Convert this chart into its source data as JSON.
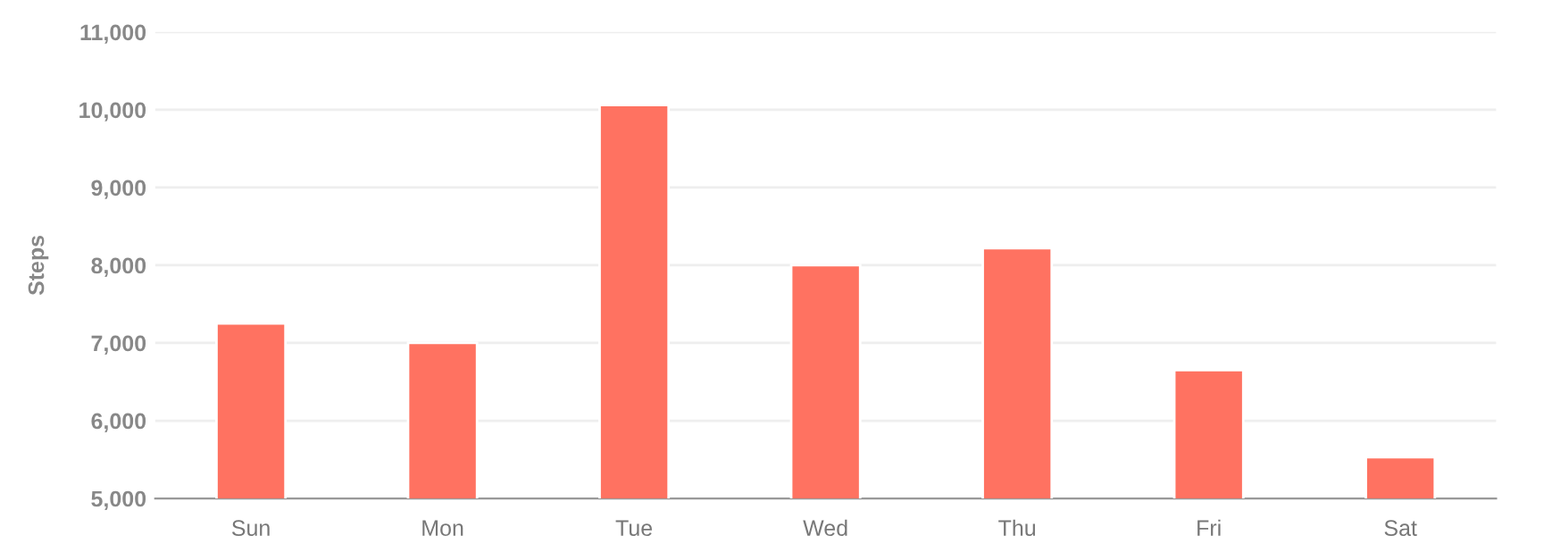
{
  "chart_data": {
    "type": "bar",
    "ylabel": "Steps",
    "categories": [
      "Sun",
      "Mon",
      "Tue",
      "Wed",
      "Thu",
      "Fri",
      "Sat"
    ],
    "values": [
      7250,
      7000,
      10060,
      8000,
      8220,
      6650,
      5530
    ],
    "color": "#ff7261",
    "ylim": [
      5000,
      11000
    ],
    "yticks": [
      {
        "value": 5000,
        "label": "5,000"
      },
      {
        "value": 6000,
        "label": "6,000"
      },
      {
        "value": 7000,
        "label": "7,000"
      },
      {
        "value": 8000,
        "label": "8,000"
      },
      {
        "value": 9000,
        "label": "9,000"
      },
      {
        "value": 10000,
        "label": "10,000"
      },
      {
        "value": 11000,
        "label": "11,000"
      }
    ],
    "grid": "y",
    "legend": false
  }
}
